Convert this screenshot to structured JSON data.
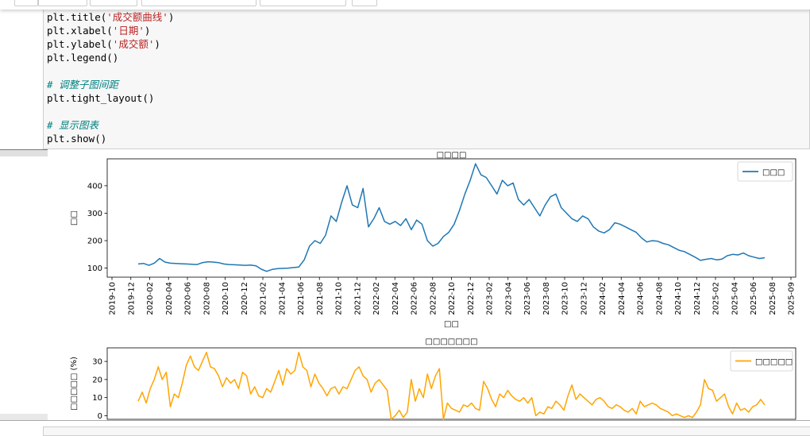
{
  "code_cell": {
    "lines": [
      {
        "pre": "plt.title(",
        "str": "'成交额曲线'",
        "post": ")"
      },
      {
        "pre": "plt.xlabel(",
        "str": "'日期'",
        "post": ")"
      },
      {
        "pre": "plt.ylabel(",
        "str": "'成交额'",
        "post": ")"
      },
      {
        "pre": "plt.legend()",
        "str": "",
        "post": ""
      },
      {
        "pre": "",
        "str": "",
        "post": ""
      },
      {
        "comment": "# 调整子图间距"
      },
      {
        "pre": "plt.tight_layout()",
        "str": "",
        "post": ""
      },
      {
        "pre": "",
        "str": "",
        "post": ""
      },
      {
        "comment": "# 显示图表"
      },
      {
        "pre": "plt.show()",
        "str": "",
        "post": ""
      }
    ]
  },
  "chart_data": [
    {
      "type": "line",
      "title": "□□□□",
      "xlabel": "□□",
      "ylabel": "□□",
      "ylim": [
        67,
        498
      ],
      "yticks": [
        100,
        200,
        300,
        400
      ],
      "xtick_labels": [
        "2019-10",
        "2019-12",
        "2020-02",
        "2020-04",
        "2020-06",
        "2020-08",
        "2020-10",
        "2020-12",
        "2021-02",
        "2021-04",
        "2021-06",
        "2021-08",
        "2021-10",
        "2021-12",
        "2022-02",
        "2022-04",
        "2022-06",
        "2022-08",
        "2022-10",
        "2022-12",
        "2023-02",
        "2023-04",
        "2023-06",
        "2023-08",
        "2023-10",
        "2023-12",
        "2024-02",
        "2024-04",
        "2024-06",
        "2024-08",
        "2024-10",
        "2024-12",
        "2025-02",
        "2025-04",
        "2025-06",
        "2025-08",
        "2025-09"
      ],
      "grid": false,
      "legend": "top-right",
      "series": [
        {
          "name": "□□□",
          "color": "#1f77b4",
          "values": [
            115,
            117,
            110,
            118,
            135,
            122,
            118,
            117,
            116,
            115,
            114,
            113,
            120,
            123,
            122,
            120,
            115,
            113,
            112,
            111,
            110,
            111,
            108,
            96,
            88,
            95,
            98,
            99,
            100,
            102,
            104,
            130,
            180,
            200,
            190,
            220,
            290,
            270,
            340,
            400,
            330,
            320,
            390,
            250,
            280,
            320,
            270,
            260,
            270,
            255,
            280,
            240,
            275,
            260,
            200,
            180,
            190,
            215,
            230,
            260,
            310,
            370,
            420,
            480,
            440,
            430,
            400,
            370,
            420,
            400,
            410,
            350,
            330,
            350,
            320,
            290,
            330,
            360,
            370,
            320,
            300,
            280,
            270,
            290,
            280,
            250,
            235,
            228,
            240,
            265,
            260,
            250,
            240,
            230,
            210,
            195,
            200,
            198,
            190,
            185,
            175,
            165,
            160,
            150,
            140,
            128,
            132,
            135,
            130,
            133,
            145,
            150,
            148,
            155,
            145,
            140,
            135,
            138
          ]
        }
      ]
    },
    {
      "type": "line",
      "title": "□□□□□□□",
      "ylabel": "□□□□□ (%)",
      "ylim": [
        -2,
        37.5
      ],
      "yticks": [
        0,
        10,
        20,
        30
      ],
      "grid": false,
      "legend": "top-right",
      "series": [
        {
          "name": "□□□□□",
          "color": "#ffa500",
          "values": [
            8,
            13,
            7,
            15,
            20,
            27,
            20,
            24,
            5,
            12,
            10,
            18,
            28,
            33,
            27,
            25,
            30,
            35,
            27,
            26,
            22,
            16,
            21,
            18,
            20,
            15,
            24,
            22,
            12,
            16,
            11,
            10,
            15,
            13,
            19,
            25,
            17,
            26,
            23,
            25,
            35,
            27,
            25,
            16,
            23,
            18,
            15,
            11,
            15,
            16,
            12,
            16,
            15,
            20,
            25,
            27,
            22,
            20,
            13,
            18,
            20,
            17,
            14,
            -2,
            0,
            3,
            -1,
            2,
            20,
            8,
            15,
            10,
            23,
            15,
            22,
            26,
            -2,
            7,
            4,
            3,
            2,
            6,
            5,
            7,
            4,
            3,
            19,
            15,
            9,
            5,
            12,
            10,
            14,
            11,
            9,
            8,
            10,
            7,
            10,
            0,
            2,
            1,
            5,
            4,
            8,
            6,
            3,
            11,
            17,
            9,
            12,
            10,
            8,
            6,
            9,
            10,
            8,
            5,
            4,
            6,
            5,
            3,
            2,
            4,
            1,
            8,
            5,
            6,
            7,
            6,
            4,
            3,
            2,
            0,
            1,
            0,
            -1,
            0,
            -1,
            2,
            6,
            20,
            15,
            14,
            8,
            10,
            12,
            5,
            1,
            7,
            3,
            4,
            2,
            5,
            6,
            9,
            6
          ]
        }
      ]
    }
  ]
}
